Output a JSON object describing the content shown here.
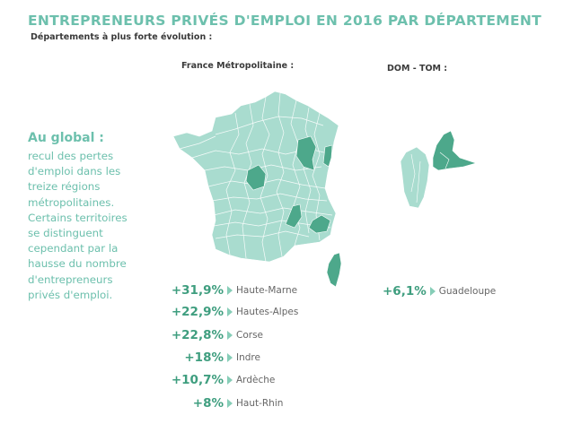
{
  "header": {
    "title": "ENTREPRENEURS PRIVÉS D'EMPLOI EN 2016 PAR DÉPARTEMENT",
    "subtitle": "Départements à plus forte évolution :"
  },
  "columns": {
    "metropole": "France Métropolitaine :",
    "domtom": "DOM - TOM :"
  },
  "global": {
    "heading": "Au global :",
    "lines": [
      "recul des pertes",
      "d'emploi dans les",
      "treize régions",
      "métropolitaines.",
      "Certains territoires",
      "se distinguent",
      "cependant par la",
      "hausse du nombre",
      "d'entrepreneurs",
      "privés d'emploi."
    ]
  },
  "metropole_stats": [
    {
      "value": "+31,9%",
      "name": "Haute-Marne"
    },
    {
      "value": "+22,9%",
      "name": "Hautes-Alpes"
    },
    {
      "value": "+22,8%",
      "name": "Corse"
    },
    {
      "value": "+18%",
      "name": "Indre"
    },
    {
      "value": "+10,7%",
      "name": "Ardèche"
    },
    {
      "value": "+8%",
      "name": "Haut-Rhin"
    }
  ],
  "domtom_stats": [
    {
      "value": "+6,1%",
      "name": "Guadeloupe"
    }
  ],
  "colors": {
    "accent": "#6dc0ad",
    "map_base": "#a9dccf",
    "map_highlight": "#4da88b",
    "department_lines": "#ffffff"
  }
}
